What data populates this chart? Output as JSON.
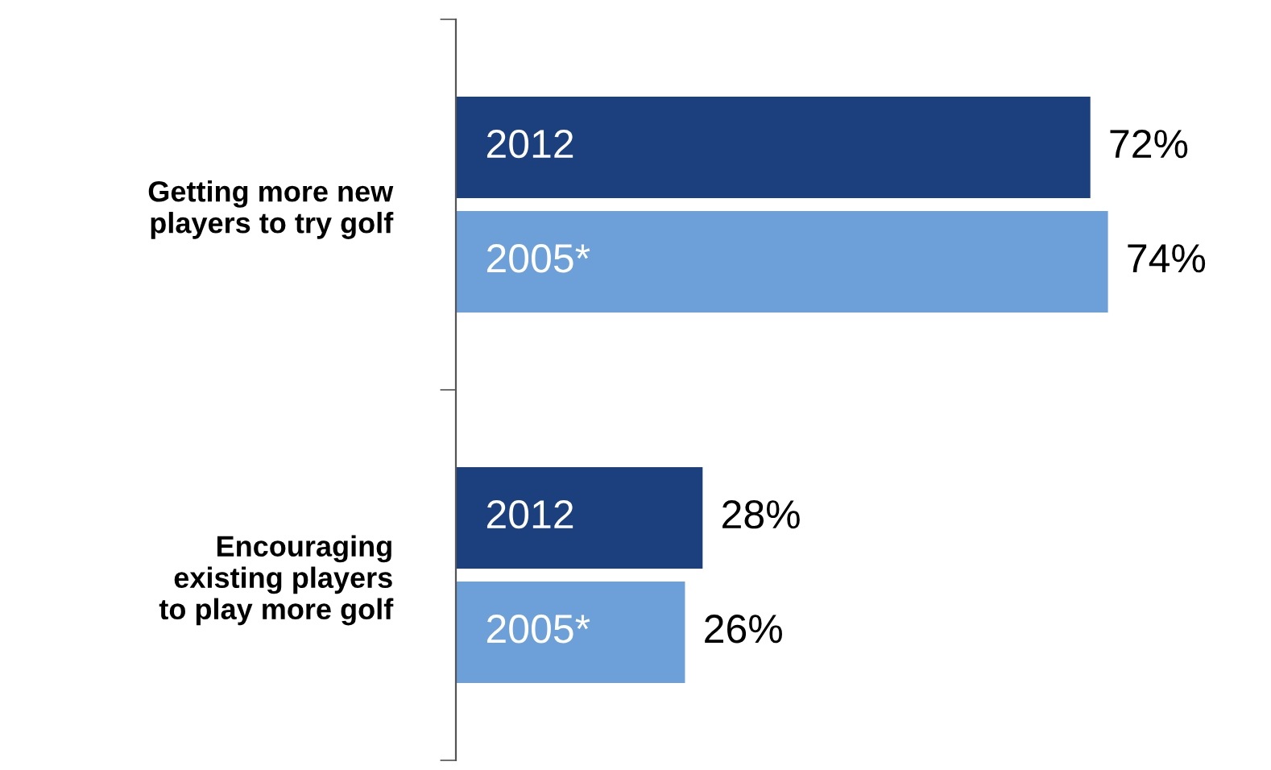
{
  "chart_data": {
    "type": "bar",
    "orientation": "horizontal",
    "categories": [
      "Getting more new\nplayers to try golf",
      "Encouraging\nexisting players\nto play more golf"
    ],
    "series": [
      {
        "name": "2012",
        "color": "#1c3f7e",
        "values": [
          72,
          28
        ],
        "value_labels": [
          "72%",
          "28%"
        ]
      },
      {
        "name": "2005*",
        "color": "#6d9fd9",
        "values": [
          74,
          26
        ],
        "value_labels": [
          "74%",
          "26%"
        ]
      }
    ],
    "grid": false,
    "legend": false
  }
}
